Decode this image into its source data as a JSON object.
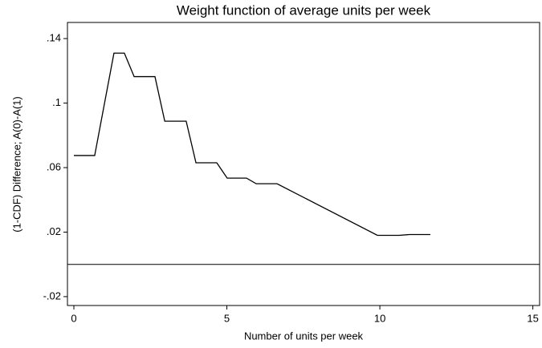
{
  "chart_data": {
    "type": "line",
    "title": "Weight function of average units per week",
    "x_label": "Number of units per week",
    "y_label": "(1-CDF) Difference; A(0)-A(1)",
    "x": [
      0,
      0.68,
      1.31,
      1.65,
      1.97,
      2.65,
      2.97,
      3.67,
      3.99,
      4.67,
      5.01,
      5.64,
      5.96,
      6.64,
      9.92,
      10.63,
      10.97,
      11.65
    ],
    "values": [
      0.0675,
      0.0675,
      0.131,
      0.131,
      0.1164,
      0.1164,
      0.0888,
      0.0888,
      0.063,
      0.063,
      0.0535,
      0.0535,
      0.05,
      0.05,
      0.018,
      0.018,
      0.0185,
      0.0185
    ],
    "color": "#000000",
    "reference_line": 0,
    "xlim": [
      -0.21,
      15.22
    ],
    "ylim": [
      -0.0255,
      0.15
    ],
    "xticks": [
      0,
      5,
      10,
      15
    ],
    "yticks": [
      {
        "value": 0.14,
        "label": ".14"
      },
      {
        "value": 0.1,
        "label": ".1"
      },
      {
        "value": 0.06,
        "label": ".06"
      },
      {
        "value": 0.02,
        "label": ".02"
      },
      {
        "value": -0.02,
        "label": "-.02"
      }
    ]
  }
}
